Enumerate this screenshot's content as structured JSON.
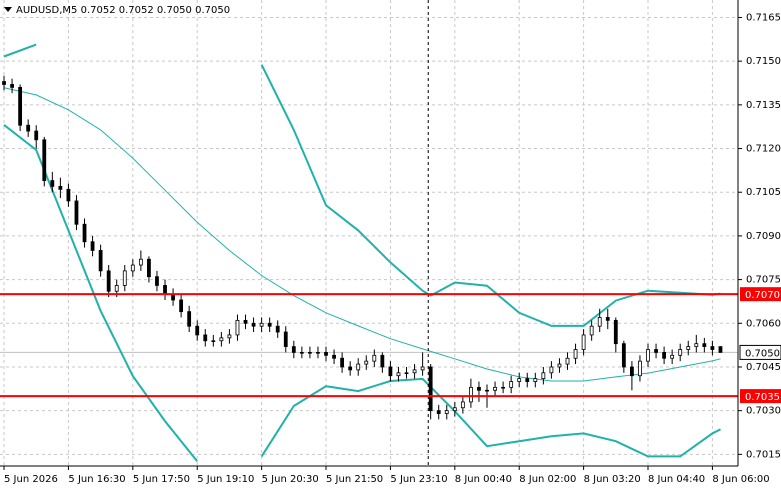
{
  "chart_data": {
    "type": "candlestick",
    "title": "AUDUSD,M5  0.7052 0.7052 0.7050 0.7050",
    "xlim": [
      -0.5,
      91.18
    ],
    "xticks": [
      {
        "value": 0,
        "label": "5 Jun 2026"
      },
      {
        "value": 8,
        "label": "5 Jun 16:30"
      },
      {
        "value": 16,
        "label": "5 Jun 17:50"
      },
      {
        "value": 24,
        "label": "5 Jun 19:10"
      },
      {
        "value": 32,
        "label": "5 Jun 20:30"
      },
      {
        "value": 40,
        "label": "5 Jun 21:50"
      },
      {
        "value": 48,
        "label": "5 Jun 23:10"
      },
      {
        "value": 56,
        "label": "8 Jun 00:40"
      },
      {
        "value": 64,
        "label": "8 Jun 02:00"
      },
      {
        "value": 72,
        "label": "8 Jun 03:20"
      },
      {
        "value": 80,
        "label": "8 Jun 04:40"
      },
      {
        "value": 88,
        "label": "8 Jun 06:00"
      }
    ],
    "ylim": [
      0.7011,
      0.7171
    ],
    "yticks": [
      0.7165,
      {
        "value": 0.715,
        "label": "0.7150"
      },
      0.7135,
      {
        "value": 0.712,
        "label": "0.7120"
      },
      0.7105,
      {
        "value": 0.709,
        "label": "0.7090"
      },
      0.7075,
      {
        "value": 0.706,
        "label": "0.7060"
      },
      0.7045,
      {
        "value": 0.703,
        "label": "0.7030"
      },
      0.7015
    ],
    "grid": true,
    "up_color": "#ffffff",
    "down_color": "#000000",
    "open": [
      0.7143,
      0.7142,
      0.7141,
      0.7128,
      0.7126,
      0.7123,
      0.7109,
      0.7107,
      0.7106,
      0.7102,
      0.7094,
      0.7088,
      0.7085,
      0.7078,
      0.7071,
      0.7073,
      0.7078,
      0.708,
      0.7082,
      0.7076,
      0.7073,
      0.707,
      0.7068,
      0.7064,
      0.7059,
      0.7056,
      0.7054,
      0.7054,
      0.7055,
      0.7056,
      0.7061,
      0.706,
      0.7059,
      0.706,
      0.7059,
      0.7057,
      0.7052,
      0.705,
      0.705,
      0.705,
      0.705,
      0.7049,
      0.7048,
      0.7045,
      0.7044,
      0.7046,
      0.7047,
      0.7049,
      0.7045,
      0.7042,
      0.7043,
      0.7043,
      0.7044,
      0.7045,
      0.703,
      0.7029,
      0.703,
      0.7031,
      0.7033,
      0.7038,
      0.7037,
      0.7037,
      0.7038,
      0.7038,
      0.704,
      0.7041,
      0.704,
      0.7041,
      0.7043,
      0.7045,
      0.7046,
      0.7048,
      0.7051,
      0.7056,
      0.7059,
      0.7062,
      0.7061,
      0.7053,
      0.7045,
      0.7042,
      0.7047,
      0.7051,
      0.705,
      0.7048,
      0.7049,
      0.7051,
      0.7052,
      0.7053,
      0.7052,
      0.7052
    ],
    "high": [
      0.7145,
      0.7144,
      0.7142,
      0.713,
      0.7128,
      0.7124,
      0.7112,
      0.711,
      0.7108,
      0.7104,
      0.7096,
      0.709,
      0.7087,
      0.708,
      0.7075,
      0.708,
      0.7082,
      0.7085,
      0.7083,
      0.7078,
      0.7075,
      0.7072,
      0.707,
      0.7066,
      0.7061,
      0.7058,
      0.7056,
      0.7057,
      0.7058,
      0.7063,
      0.7063,
      0.7062,
      0.7062,
      0.7062,
      0.7061,
      0.7059,
      0.7054,
      0.7052,
      0.7052,
      0.7052,
      0.7052,
      0.7051,
      0.705,
      0.7047,
      0.7048,
      0.7049,
      0.7051,
      0.705,
      0.7047,
      0.7045,
      0.7045,
      0.7046,
      0.705,
      0.7046,
      0.7032,
      0.7032,
      0.7033,
      0.7035,
      0.7041,
      0.704,
      0.7039,
      0.704,
      0.704,
      0.7042,
      0.7043,
      0.7043,
      0.7043,
      0.7045,
      0.7047,
      0.7048,
      0.705,
      0.7053,
      0.7058,
      0.7061,
      0.7065,
      0.7065,
      0.7062,
      0.7054,
      0.7047,
      0.7049,
      0.7053,
      0.7053,
      0.7052,
      0.7051,
      0.7053,
      0.7054,
      0.7056,
      0.7055,
      0.7054,
      0.7052
    ],
    "low": [
      0.714,
      0.7139,
      0.7126,
      0.7124,
      0.712,
      0.7107,
      0.7105,
      0.7103,
      0.71,
      0.7092,
      0.7086,
      0.7083,
      0.7076,
      0.7069,
      0.7069,
      0.7071,
      0.7076,
      0.7078,
      0.7074,
      0.7071,
      0.7068,
      0.7066,
      0.7062,
      0.7057,
      0.7054,
      0.7052,
      0.7052,
      0.7052,
      0.7053,
      0.7054,
      0.7058,
      0.7057,
      0.7057,
      0.7057,
      0.7055,
      0.705,
      0.7048,
      0.7048,
      0.7048,
      0.7048,
      0.7047,
      0.7046,
      0.7043,
      0.7042,
      0.7042,
      0.7044,
      0.7045,
      0.7043,
      0.704,
      0.704,
      0.7041,
      0.7041,
      0.7042,
      0.7027,
      0.7027,
      0.7027,
      0.7028,
      0.7029,
      0.7031,
      0.7033,
      0.7031,
      0.7035,
      0.7036,
      0.7036,
      0.7038,
      0.7038,
      0.7038,
      0.7039,
      0.7041,
      0.7043,
      0.7044,
      0.7046,
      0.7049,
      0.7054,
      0.7057,
      0.7058,
      0.705,
      0.7043,
      0.7037,
      0.704,
      0.7045,
      0.7048,
      0.7046,
      0.7046,
      0.7047,
      0.7049,
      0.705,
      0.705,
      0.7049,
      0.705
    ],
    "close": [
      0.7142,
      0.7141,
      0.7128,
      0.7126,
      0.7123,
      0.7109,
      0.7107,
      0.7106,
      0.7102,
      0.7094,
      0.7088,
      0.7085,
      0.7078,
      0.7071,
      0.7073,
      0.7078,
      0.708,
      0.7082,
      0.7076,
      0.7073,
      0.707,
      0.7068,
      0.7064,
      0.7059,
      0.7056,
      0.7054,
      0.7054,
      0.7055,
      0.7056,
      0.7061,
      0.706,
      0.7059,
      0.706,
      0.7059,
      0.7057,
      0.7052,
      0.705,
      0.705,
      0.705,
      0.705,
      0.7049,
      0.7048,
      0.7045,
      0.7044,
      0.7046,
      0.7047,
      0.7049,
      0.7045,
      0.7042,
      0.7043,
      0.7043,
      0.7044,
      0.7045,
      0.703,
      0.7029,
      0.703,
      0.7031,
      0.7033,
      0.7038,
      0.7037,
      0.7037,
      0.7038,
      0.7038,
      0.704,
      0.7041,
      0.704,
      0.7041,
      0.7043,
      0.7045,
      0.7046,
      0.7048,
      0.7051,
      0.7056,
      0.7059,
      0.7062,
      0.7061,
      0.7053,
      0.7045,
      0.7042,
      0.7047,
      0.7051,
      0.705,
      0.7048,
      0.7049,
      0.7051,
      0.7052,
      0.7053,
      0.7052,
      0.7051,
      0.705
    ],
    "overlays": [
      {
        "color": "#20b2aa",
        "width": 2,
        "x": [
          0,
          4,
          8,
          12,
          16,
          20,
          24,
          28,
          32,
          36,
          40,
          44,
          48,
          52,
          53,
          56,
          60,
          64,
          68,
          72,
          76,
          80,
          84,
          88,
          89
        ],
        "values": [
          0.71516,
          0.71557,
          null,
          null,
          null,
          null,
          null,
          null,
          0.71488,
          0.71264,
          0.71005,
          0.70919,
          0.70809,
          0.70712,
          0.70695,
          0.7074,
          0.70729,
          0.70636,
          0.70591,
          0.70591,
          0.70678,
          0.70712,
          0.70705,
          0.70698,
          0.70702
        ]
      },
      {
        "color": "#20b2aa",
        "width": 1,
        "x": [
          0,
          4,
          8,
          12,
          16,
          20,
          24,
          28,
          32,
          36,
          40,
          44,
          48,
          52,
          56,
          60,
          64,
          68,
          72,
          76,
          80,
          84,
          88,
          89
        ],
        "values": [
          0.71409,
          0.71384,
          0.71333,
          0.71264,
          0.71167,
          0.71057,
          0.70947,
          0.7085,
          0.70764,
          0.70695,
          0.70636,
          0.70591,
          0.70547,
          0.70512,
          0.70478,
          0.70443,
          0.70416,
          0.70402,
          0.70402,
          0.70416,
          0.70429,
          0.7045,
          0.70471,
          0.70478
        ]
      },
      {
        "color": "#20b2aa",
        "width": 2,
        "x": [
          0,
          4,
          8,
          12,
          16,
          20,
          24,
          28,
          32,
          36,
          40,
          44,
          48,
          52,
          56,
          60,
          64,
          68,
          72,
          76,
          80,
          84,
          88,
          89
        ],
        "values": [
          0.71281,
          0.71195,
          0.70919,
          0.70643,
          0.70419,
          0.70264,
          0.70126,
          null,
          0.70143,
          0.70316,
          0.70384,
          0.70367,
          0.70402,
          0.70409,
          0.70298,
          0.70178,
          0.70195,
          0.70212,
          0.70222,
          0.70195,
          0.70143,
          0.70143,
          0.70222,
          0.70236
        ]
      }
    ],
    "levels": [
      {
        "value": 0.707,
        "label": "0.7070",
        "color": "#ff0000"
      },
      {
        "value": 0.7035,
        "label": "0.7035",
        "color": "#ff0000"
      }
    ],
    "bid": {
      "value": 0.705,
      "label": "0.7050",
      "color": "#c0c0c0"
    },
    "vline_x": 52.7
  }
}
